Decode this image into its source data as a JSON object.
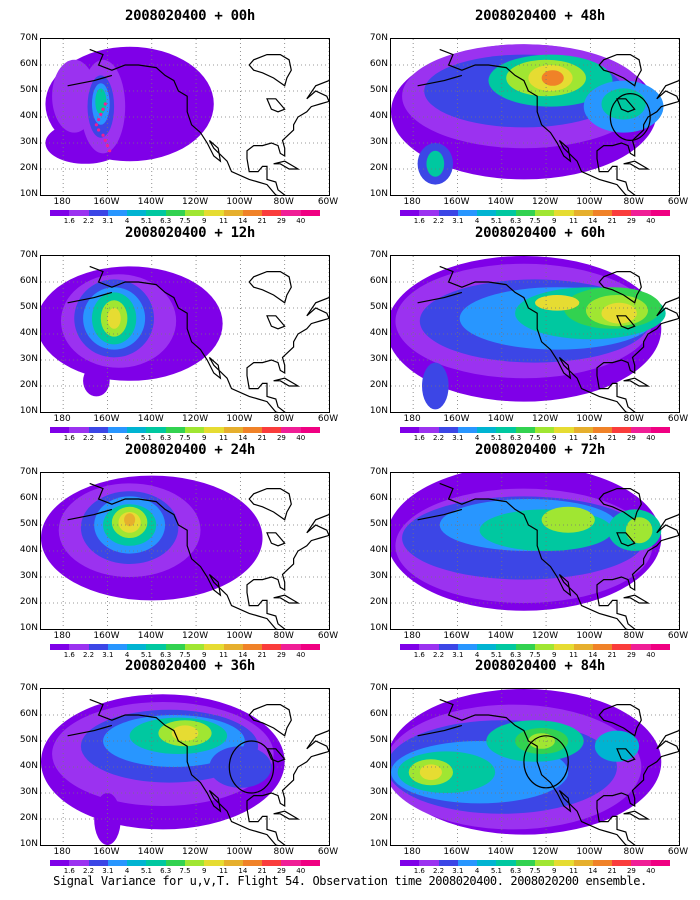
{
  "caption": "Signal Variance for u,v,T. Flight 54. Observation time 2008020400. 2008020200 ensemble.",
  "axes": {
    "lat_labels": [
      "70N",
      "60N",
      "50N",
      "40N",
      "30N",
      "20N",
      "10N"
    ],
    "lon_labels": [
      "180",
      "160W",
      "140W",
      "120W",
      "100W",
      "80W",
      "60W"
    ]
  },
  "colorbar": {
    "labels": [
      "1.6",
      "2.2",
      "3.1",
      "4",
      "5.1",
      "6.3",
      "7.5",
      "9",
      "11",
      "14",
      "21",
      "29",
      "40"
    ],
    "colors": [
      "#7f00e8",
      "#9b32f0",
      "#3c46e6",
      "#2896ff",
      "#00b4d2",
      "#00c8a0",
      "#32d250",
      "#a0e632",
      "#e6dc32",
      "#e6af2d",
      "#f08228",
      "#fa3c3c",
      "#f01e96",
      "#f00082"
    ]
  },
  "panels": [
    {
      "title": "2008020400 + 00h"
    },
    {
      "title": "2008020400 + 48h"
    },
    {
      "title": "2008020400 + 12h"
    },
    {
      "title": "2008020400 + 60h"
    },
    {
      "title": "2008020400 + 24h"
    },
    {
      "title": "2008020400 + 72h"
    },
    {
      "title": "2008020400 + 36h"
    },
    {
      "title": "2008020400 + 84h"
    }
  ]
}
